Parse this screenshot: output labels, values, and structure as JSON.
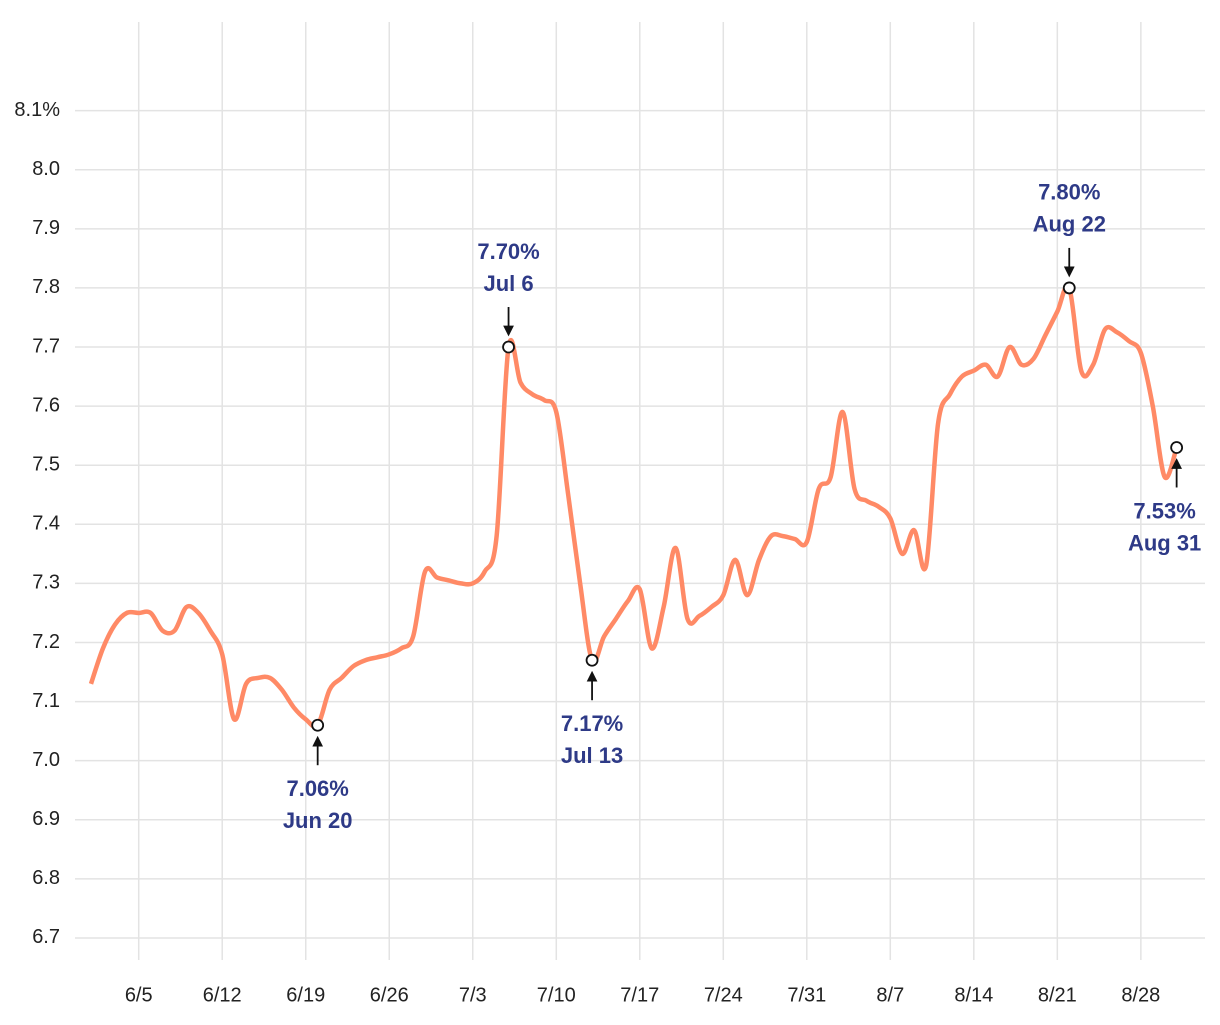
{
  "chart_data": {
    "type": "line",
    "categories": [
      null,
      null,
      null,
      null,
      "6/5",
      null,
      null,
      null,
      null,
      null,
      null,
      "6/12",
      null,
      null,
      null,
      null,
      null,
      null,
      "6/19",
      null,
      null,
      null,
      null,
      null,
      null,
      "6/26",
      null,
      null,
      null,
      null,
      null,
      null,
      "7/3",
      null,
      null,
      null,
      null,
      null,
      null,
      "7/10",
      null,
      null,
      null,
      null,
      null,
      null,
      "7/17",
      null,
      null,
      null,
      null,
      null,
      null,
      "7/24",
      null,
      null,
      null,
      null,
      null,
      null,
      "7/31",
      null,
      null,
      null,
      null,
      null,
      null,
      "8/7",
      null,
      null,
      null,
      null,
      null,
      null,
      "8/14",
      null,
      null,
      null,
      null,
      null,
      null,
      "8/21",
      null,
      null,
      null,
      null,
      null,
      null,
      "8/28",
      null,
      null,
      null
    ],
    "series": [
      {
        "color": "#ff8a66",
        "values": [
          7.13,
          7.19,
          7.23,
          7.25,
          7.25,
          7.25,
          7.22,
          7.22,
          7.26,
          7.25,
          7.22,
          7.18,
          7.07,
          7.13,
          7.14,
          7.14,
          7.12,
          7.09,
          7.07,
          7.06,
          7.12,
          7.14,
          7.16,
          7.17,
          7.175,
          7.18,
          7.19,
          7.21,
          7.32,
          7.31,
          7.305,
          7.3,
          7.3,
          7.32,
          7.38,
          7.7,
          7.64,
          7.62,
          7.61,
          7.59,
          7.45,
          7.3,
          7.17,
          7.21,
          7.24,
          7.27,
          7.29,
          7.19,
          7.26,
          7.36,
          7.24,
          7.245,
          7.26,
          7.28,
          7.34,
          7.28,
          7.34,
          7.38,
          7.38,
          7.375,
          7.37,
          7.46,
          7.48,
          7.59,
          7.46,
          7.44,
          7.43,
          7.41,
          7.35,
          7.39,
          7.33,
          7.57,
          7.62,
          7.65,
          7.66,
          7.67,
          7.65,
          7.7,
          7.67,
          7.68,
          7.72,
          7.76,
          7.8,
          7.66,
          7.67,
          7.73,
          7.725,
          7.71,
          7.69,
          7.6,
          7.48,
          7.53
        ],
        "value_labels": [
          null,
          null,
          null,
          null,
          null,
          null,
          null,
          null,
          null,
          null,
          null,
          null,
          null,
          null,
          null,
          null,
          null,
          null,
          null,
          "7.06%",
          null,
          null,
          null,
          null,
          null,
          null,
          null,
          null,
          null,
          null,
          null,
          null,
          null,
          null,
          null,
          "7.70%",
          null,
          null,
          null,
          null,
          null,
          null,
          "7.17%",
          null,
          null,
          null,
          null,
          null,
          null,
          null,
          null,
          null,
          null,
          null,
          null,
          null,
          null,
          null,
          null,
          null,
          null,
          null,
          null,
          null,
          null,
          null,
          null,
          null,
          null,
          null,
          null,
          null,
          null,
          null,
          null,
          null,
          null,
          null,
          null,
          null,
          null,
          null,
          "7.80%",
          null,
          null,
          null,
          null,
          null,
          null,
          null,
          null,
          "7.53%"
        ],
        "annotation_dates": [
          null,
          null,
          null,
          null,
          null,
          null,
          null,
          null,
          null,
          null,
          null,
          null,
          null,
          null,
          null,
          null,
          null,
          null,
          null,
          "Jun 20",
          null,
          null,
          null,
          null,
          null,
          null,
          null,
          null,
          null,
          null,
          null,
          null,
          null,
          null,
          null,
          "Jul 6",
          null,
          null,
          null,
          null,
          null,
          null,
          "Jul 13",
          null,
          null,
          null,
          null,
          null,
          null,
          null,
          null,
          null,
          null,
          null,
          null,
          null,
          null,
          null,
          null,
          null,
          null,
          null,
          null,
          null,
          null,
          null,
          null,
          null,
          null,
          null,
          null,
          null,
          null,
          null,
          null,
          null,
          null,
          null,
          null,
          null,
          null,
          null,
          "Aug 22",
          null,
          null,
          null,
          null,
          null,
          null,
          null,
          null,
          "Aug 31"
        ]
      }
    ],
    "ylim": [
      6.65,
      8.25
    ],
    "yticks": [
      {
        "value": 6.7,
        "label": "6.7"
      },
      6.8,
      6.9,
      {
        "value": 7.0,
        "label": "7.0"
      },
      7.1,
      7.2,
      7.3,
      7.4,
      7.5,
      7.6,
      7.7,
      7.8,
      7.9,
      {
        "value": 8.0,
        "label": "8.0"
      },
      {
        "value": 8.1,
        "label": "8.1%"
      }
    ],
    "grid": true
  }
}
